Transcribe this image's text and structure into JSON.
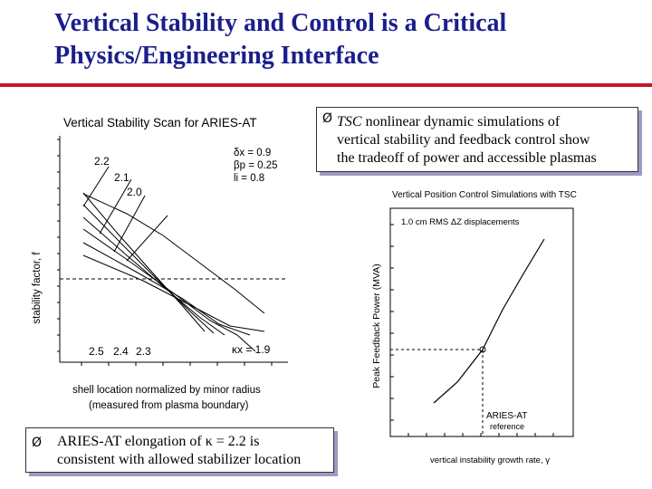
{
  "slide": {
    "title_lines": [
      "Vertical Stability and Control is a Critical",
      "Physics/Engineering Interface"
    ]
  },
  "bullets": {
    "top_right": {
      "marker": "Ø",
      "lines": [
        "TSC nonlinear dynamic simulations  of",
        "vertical stability and feedback control show",
        "the tradeoff of power and accessible plasmas"
      ]
    },
    "bottom_left": {
      "marker": "Ø",
      "lines": [
        "ARIES-AT elongation of κ = 2.2 is",
        "consistent with allowed stabilizer location"
      ]
    }
  },
  "left_figure": {
    "title": "Vertical Stability Scan for ARIES-AT",
    "ylabel": "stability factor, f",
    "xlabel_lines": [
      "shell location normalized by minor radius",
      "(measured from plasma boundary)"
    ],
    "params": [
      "δx = 0.9",
      "βp = 0.25",
      "li = 0.8"
    ],
    "curve_labels_top": [
      "2.2",
      "2.1",
      "2.0"
    ],
    "curve_labels_bottom": [
      "2.5",
      "2.4",
      "2.3",
      "κx = 1.9"
    ]
  },
  "right_figure": {
    "title": "Vertical Position Control Simulations with TSC",
    "ylabel": "Peak Feedback Power (MVA)",
    "xlabel": "vertical instability growth rate, γ",
    "annotation": "1.0 cm RMS ΔZ displacements",
    "reference_lines": [
      "ARIES-AT",
      "reference"
    ]
  },
  "colors": {
    "title": "#1a1f8c",
    "rule": "#c21a2a",
    "shadow": "#9b9bc4"
  }
}
